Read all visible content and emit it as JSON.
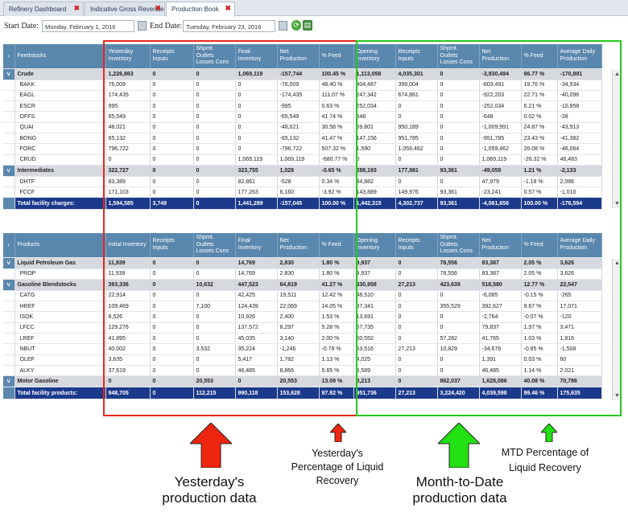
{
  "tabs": [
    {
      "label": "Refinery Dashboard"
    },
    {
      "label": "Indicative Gross Revenue"
    },
    {
      "label": "Production Book"
    }
  ],
  "dates": {
    "start_label": "Start Date:",
    "start_value": "Monday, February 1, 2016",
    "end_label": "End Date:",
    "end_value": "Tuesday, February 23, 2016"
  },
  "table1": {
    "headers": [
      "Feedstocks",
      "Yesterday Inventory",
      "Receipts Inputs",
      "Shpmt. Outlets Losses Cons",
      "Final Inventory",
      "Net Production",
      "% Feed",
      "Opening Inventory",
      "Receipts Inputs",
      "Shpmt. Outlets Losses Cons",
      "Net Production",
      "% Feed",
      "Average Daily Production"
    ],
    "rows": [
      {
        "type": "grp",
        "cells": [
          "Crude",
          "1,226,863",
          "0",
          "0",
          "1,069,119",
          "-157,744",
          "100.45 %",
          "1,113,058",
          "4,035,301",
          "0",
          "-3,930,494",
          "96.77 %",
          "-170,891"
        ]
      },
      {
        "type": "row",
        "cells": [
          "BAKK",
          "76,009",
          "0",
          "0",
          "0",
          "-76,009",
          "48.40 %",
          "404,487",
          "399,004",
          "0",
          "-803,491",
          "19.76 %",
          "-34,934"
        ]
      },
      {
        "type": "row",
        "cells": [
          "EAGL",
          "174,435",
          "0",
          "0",
          "0",
          "-174,435",
          "111.07 %",
          "247,342",
          "674,861",
          "0",
          "-922,203",
          "22.71 %",
          "-40,096"
        ]
      },
      {
        "type": "row",
        "cells": [
          "ESCR",
          "995",
          "0",
          "0",
          "0",
          "-995",
          "0.63 %",
          "252,034",
          "0",
          "0",
          "-252,034",
          "6.21 %",
          "-10,958"
        ]
      },
      {
        "type": "row",
        "cells": [
          "OFFS",
          "65,549",
          "0",
          "0",
          "0",
          "-65,549",
          "41.74 %",
          "648",
          "0",
          "0",
          "-648",
          "0.02 %",
          "-28"
        ]
      },
      {
        "type": "row",
        "cells": [
          "QUAI",
          "48,021",
          "0",
          "0",
          "0",
          "-48,021",
          "30.58 %",
          "59,801",
          "950,189",
          "0",
          "-1,009,991",
          "24.87 %",
          "-43,913"
        ]
      },
      {
        "type": "row",
        "cells": [
          "BONG",
          "65,132",
          "0",
          "0",
          "0",
          "-65,132",
          "41.47 %",
          "147,156",
          "951,785",
          "0",
          "-951,785",
          "23.43 %",
          "-41,382"
        ]
      },
      {
        "type": "row",
        "cells": [
          "FORC",
          "796,722",
          "0",
          "0",
          "0",
          "-796,722",
          "507.32 %",
          "1,590",
          "1,059,462",
          "0",
          "-1,059,462",
          "26.08 %",
          "-46,064"
        ]
      },
      {
        "type": "row",
        "cells": [
          "CRUD",
          "0",
          "0",
          "0",
          "1,069,119",
          "1,069,119",
          "-680.77 %",
          "0",
          "0",
          "0",
          "1,069,119",
          "-26.32 %",
          "46,483"
        ]
      },
      {
        "type": "grp",
        "cells": [
          "Intermediates",
          "322,727",
          "0",
          "0",
          "323,755",
          "1,028",
          "-0.65 %",
          "288,193",
          "177,981",
          "93,361",
          "-49,059",
          "1.21 %",
          "-2,133"
        ]
      },
      {
        "type": "row",
        "cells": [
          "DHTF",
          "83,389",
          "0",
          "0",
          "82,861",
          "-528",
          "0.34 %",
          "34,882",
          "0",
          "0",
          "47,979",
          "-1.18 %",
          "2,086"
        ]
      },
      {
        "type": "row",
        "cells": [
          "FCCF",
          "171,103",
          "0",
          "0",
          "177,263",
          "6,160",
          "-3.92 %",
          "143,889",
          "149,976",
          "93,361",
          "-23,241",
          "0.57 %",
          "-1,010"
        ]
      },
      {
        "type": "tot",
        "cells": [
          "Total facility charges:",
          "1,594,585",
          "3,749",
          "0",
          "1,441,289",
          "-157,045",
          "100.00 %",
          "1,442,315",
          "4,302,737",
          "93,361",
          "-4,061,656",
          "100.00 %",
          "-176,594"
        ]
      }
    ]
  },
  "table2": {
    "headers": [
      "Products",
      "Initial Inventory",
      "Receipts Inputs",
      "Shpmt. Outlets Losses Cons",
      "Final Inventory",
      "Net Production",
      "% Feed",
      "Opening Inventory",
      "Receipts Inputs",
      "Shpmt. Outlets Losses Cons",
      "Net Production",
      "% Feed",
      "Average Daily Production"
    ],
    "rows": [
      {
        "type": "grp",
        "cells": [
          "Liquid Petroleum Gas",
          "11,939",
          "0",
          "0",
          "14,769",
          "2,830",
          "1.80 %",
          "9,937",
          "0",
          "78,556",
          "83,387",
          "2.05 %",
          "3,626"
        ]
      },
      {
        "type": "row",
        "cells": [
          "PROP",
          "11,939",
          "0",
          "0",
          "14,769",
          "2,830",
          "1.80 %",
          "9,937",
          "0",
          "78,556",
          "83,387",
          "2.05 %",
          "3,626"
        ]
      },
      {
        "type": "grp",
        "cells": [
          "Gasoline Blendstocks",
          "393,336",
          "0",
          "10,632",
          "447,523",
          "64,819",
          "41.27 %",
          "330,958",
          "27,213",
          "423,639",
          "518,580",
          "12.77 %",
          "22,547"
        ]
      },
      {
        "type": "row",
        "cells": [
          "CATG",
          "22,914",
          "0",
          "0",
          "42,425",
          "19,511",
          "12.42 %",
          "48,510",
          "0",
          "0",
          "-6,085",
          "-0.15 %",
          "-265"
        ]
      },
      {
        "type": "row",
        "cells": [
          "HREF",
          "109,469",
          "0",
          "7,100",
          "124,439",
          "22,069",
          "14.05 %",
          "87,341",
          "0",
          "355,529",
          "392,627",
          "9.67 %",
          "17,071"
        ]
      },
      {
        "type": "row",
        "cells": [
          "ISOK",
          "8,526",
          "0",
          "0",
          "10,926",
          "2,400",
          "1.53 %",
          "13,691",
          "0",
          "0",
          "-2,764",
          "-0.07 %",
          "-120"
        ]
      },
      {
        "type": "row",
        "cells": [
          "LFCC",
          "129,276",
          "0",
          "0",
          "137,572",
          "8,297",
          "5.28 %",
          "57,735",
          "0",
          "0",
          "79,837",
          "1.97 %",
          "3,471"
        ]
      },
      {
        "type": "row",
        "cells": [
          "LREF",
          "41,895",
          "0",
          "0",
          "45,035",
          "3,140",
          "2.00 %",
          "60,552",
          "0",
          "57,282",
          "41,765",
          "1.03 %",
          "1,816"
        ]
      },
      {
        "type": "row",
        "cells": [
          "NBUT",
          "40,002",
          "0",
          "3,532",
          "35,224",
          "-1,246",
          "-0.79 %",
          "53,516",
          "27,213",
          "10,829",
          "-34,676",
          "-0.85 %",
          "-1,508"
        ]
      },
      {
        "type": "row",
        "cells": [
          "OLEF",
          "3,635",
          "0",
          "0",
          "5,417",
          "1,782",
          "1.13 %",
          "4,025",
          "0",
          "0",
          "1,391",
          "0.03 %",
          "60"
        ]
      },
      {
        "type": "row",
        "cells": [
          "ALKY",
          "37,619",
          "0",
          "0",
          "46,485",
          "8,866",
          "5.65 %",
          "5,589",
          "0",
          "0",
          "46,485",
          "1.14 %",
          "2,021"
        ]
      },
      {
        "type": "grp",
        "cells": [
          "Motor Gasoline",
          "0",
          "0",
          "20,553",
          "0",
          "20,553",
          "13.09 %",
          "8,213",
          "0",
          "862,037",
          "1,628,086",
          "40.08 %",
          "70,786"
        ]
      },
      {
        "type": "tot",
        "cells": [
          "Total facility products:",
          "948,705",
          "0",
          "112,215",
          "990,118",
          "153,628",
          "97.82 %",
          "951,736",
          "27,213",
          "3,224,420",
          "4,039,598",
          "99.46 %",
          "175,635"
        ]
      }
    ]
  },
  "annotations": {
    "yesterday_data": "Yesterday's production data",
    "yesterday_pct": "Yesterday's Percentage of Liquid Recovery",
    "mtd_data": "Month-to-Date production data",
    "mtd_pct": "MTD Percentage of Liquid Recovery"
  },
  "colors": {
    "red_box": "#e8261c",
    "green_box": "#27c81c",
    "header_blue": "#5a87ad",
    "total_navy": "#1c3a8c"
  }
}
